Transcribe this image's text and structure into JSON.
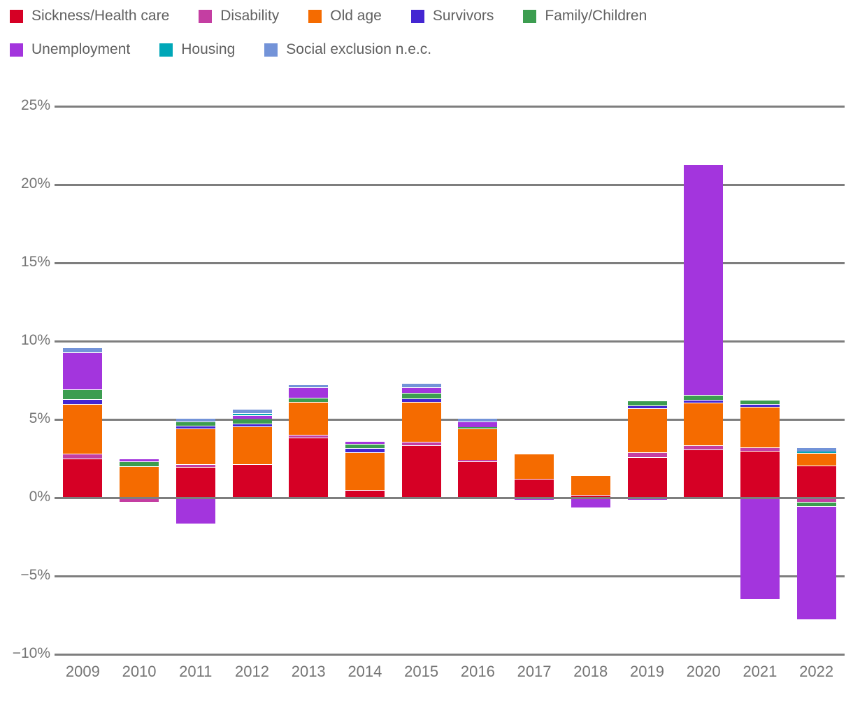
{
  "chart_data": {
    "type": "bar",
    "stacked": true,
    "title": "",
    "xlabel": "",
    "ylabel": "",
    "value_unit": "%",
    "ylim": [
      -10,
      25
    ],
    "grid": true,
    "legend_position": "top-left",
    "zero_line_on_top": true,
    "categories": [
      "2009",
      "2010",
      "2011",
      "2012",
      "2013",
      "2014",
      "2015",
      "2016",
      "2017",
      "2018",
      "2019",
      "2020",
      "2021",
      "2022"
    ],
    "y_ticks": [
      {
        "value": 25,
        "label": "25%"
      },
      {
        "value": 20,
        "label": "20%"
      },
      {
        "value": 15,
        "label": "15%"
      },
      {
        "value": 10,
        "label": "10%"
      },
      {
        "value": 5,
        "label": "5%"
      },
      {
        "value": 0,
        "label": "0%"
      },
      {
        "value": -5,
        "label": "−5%"
      },
      {
        "value": -10,
        "label": "−10%"
      }
    ],
    "series": [
      {
        "name": "Sickness/Health care",
        "color": "#d60025",
        "values": [
          2.5,
          0,
          1.95,
          2.15,
          3.85,
          0.5,
          3.35,
          2.3,
          1.2,
          0.2,
          2.6,
          3.1,
          3.0,
          2.05
        ]
      },
      {
        "name": "Disability",
        "color": "#c43ea2",
        "values": [
          0.3,
          -0.3,
          0.2,
          0,
          0.15,
          0,
          0.2,
          0.1,
          0,
          0,
          0.3,
          0.25,
          0.2,
          -0.3
        ]
      },
      {
        "name": "Old age",
        "color": "#f56b00",
        "values": [
          3.2,
          2.0,
          2.25,
          2.4,
          2.1,
          2.4,
          2.55,
          2.0,
          1.6,
          1.25,
          2.8,
          2.7,
          2.6,
          0.8
        ]
      },
      {
        "name": "Survivors",
        "color": "#4426d2",
        "values": [
          0.3,
          0,
          0.2,
          0.2,
          0,
          0.25,
          0.25,
          0,
          0,
          0,
          0.2,
          0.2,
          0.2,
          0
        ]
      },
      {
        "name": "Family/Children",
        "color": "#3c9d50",
        "values": [
          0.6,
          0.3,
          0.25,
          0.3,
          0.3,
          0.3,
          0.35,
          0.1,
          0,
          0,
          0.3,
          0.3,
          0.25,
          -0.3
        ]
      },
      {
        "name": "Unemployment",
        "color": "#a335dd",
        "values": [
          2.4,
          0.2,
          -1.7,
          0.2,
          0.65,
          0.15,
          0.35,
          0.35,
          -0.2,
          -0.65,
          -0.2,
          14.75,
          -6.5,
          -7.2
        ]
      },
      {
        "name": "Housing",
        "color": "#00a7b8",
        "values": [
          0,
          0,
          0,
          0.15,
          0,
          0,
          0,
          0,
          0,
          0,
          0,
          0,
          0,
          0.1
        ]
      },
      {
        "name": "Social exclusion n.e.c.",
        "color": "#7393d8",
        "values": [
          0.3,
          0,
          0.25,
          0.25,
          0.2,
          0,
          0.25,
          0.25,
          0,
          0,
          0,
          0,
          0,
          0.25
        ]
      }
    ]
  },
  "colors": {
    "gridline": "#7e7e7e",
    "axis_text": "#757575",
    "legend_text": "#616161",
    "background": "#ffffff"
  }
}
